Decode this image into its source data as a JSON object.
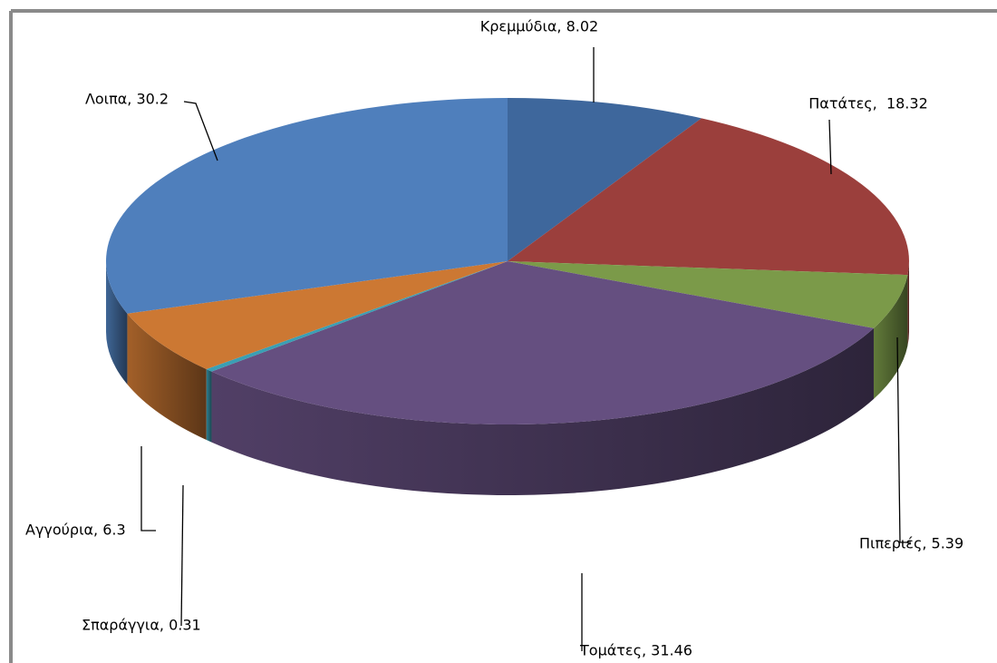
{
  "chart_data": {
    "type": "pie3d",
    "categories": [
      "Κρεμμύδια",
      "Πατάτες",
      "Πιπεριές",
      "Τομάτες",
      "Σπαράγγια",
      "Αγγούρια",
      "Λοιπα"
    ],
    "values": [
      8.02,
      18.32,
      5.39,
      31.46,
      0.31,
      6.3,
      30.2
    ],
    "value_labels": [
      "Κρεμμύδια, 8.02",
      "Πατάτες,  18.32",
      "Πιπεριές, 5.39",
      "Τομάτες, 31.46",
      "Σπαράγγια, 0.31",
      "Αγγούρια, 6.3",
      "Λοιπα, 30.2"
    ],
    "colors": [
      "#3e679c",
      "#9b3f3c",
      "#7b9a49",
      "#654f80",
      "#3a9fb4",
      "#cc7833",
      "#4f7fbc"
    ]
  }
}
